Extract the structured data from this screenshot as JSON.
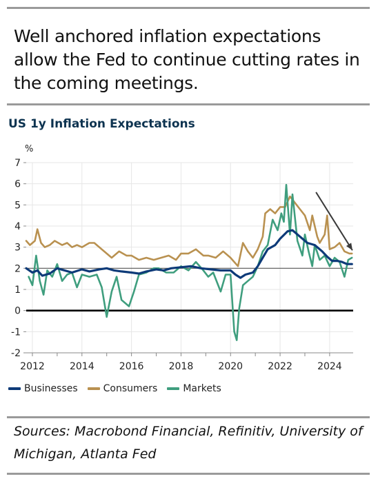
{
  "headline": "Well anchored inflation expectations allow the Fed to continue cutting rates in the coming meetings.",
  "sources": "Sources: Macrobond Financial, Refinitiv, University of Michigan, Atlanta Fed",
  "colors": {
    "businesses": "#0d3a78",
    "consumers": "#b99150",
    "markets": "#3f9e7e",
    "zero_line": "#000000",
    "target_line": "#555555",
    "grid": "#e6e6e6",
    "arrow": "#3a3a3a",
    "title": "#0d3350"
  },
  "chart_data": {
    "type": "line",
    "title": "US 1y Inflation Expectations",
    "ylabel": "%",
    "xlabel": "",
    "ylim": [
      -2,
      7
    ],
    "xlim": [
      2011.75,
      2024.95
    ],
    "yticks": [
      "-2",
      "-1",
      "0",
      "1",
      "2",
      "3",
      "4",
      "5",
      "6",
      "7"
    ],
    "xticks": [
      "2012",
      "2014",
      "2016",
      "2018",
      "2020",
      "2022",
      "2024"
    ],
    "grid": true,
    "legend_position": "bottom",
    "reference_lines": [
      0,
      2
    ],
    "annotation": "downward arrow from early 2023 toward late 2024 near 2.6%",
    "series": [
      {
        "name": "Businesses",
        "points": [
          [
            2011.75,
            2.0
          ],
          [
            2012.0,
            1.8
          ],
          [
            2012.2,
            1.9
          ],
          [
            2012.4,
            1.65
          ],
          [
            2012.7,
            1.75
          ],
          [
            2013.0,
            2.0
          ],
          [
            2013.3,
            1.9
          ],
          [
            2013.6,
            1.8
          ],
          [
            2014.0,
            1.95
          ],
          [
            2014.3,
            1.85
          ],
          [
            2014.7,
            1.95
          ],
          [
            2015.0,
            2.0
          ],
          [
            2015.3,
            1.9
          ],
          [
            2015.6,
            1.85
          ],
          [
            2016.0,
            1.8
          ],
          [
            2016.3,
            1.75
          ],
          [
            2016.6,
            1.85
          ],
          [
            2017.0,
            1.95
          ],
          [
            2017.3,
            1.9
          ],
          [
            2017.6,
            2.0
          ],
          [
            2018.0,
            2.05
          ],
          [
            2018.4,
            2.1
          ],
          [
            2018.8,
            2.0
          ],
          [
            2019.2,
            1.95
          ],
          [
            2019.6,
            1.9
          ],
          [
            2020.0,
            1.9
          ],
          [
            2020.2,
            1.7
          ],
          [
            2020.4,
            1.55
          ],
          [
            2020.6,
            1.7
          ],
          [
            2020.9,
            1.8
          ],
          [
            2021.1,
            2.1
          ],
          [
            2021.3,
            2.5
          ],
          [
            2021.5,
            2.9
          ],
          [
            2021.8,
            3.1
          ],
          [
            2022.0,
            3.4
          ],
          [
            2022.3,
            3.75
          ],
          [
            2022.5,
            3.8
          ],
          [
            2022.8,
            3.5
          ],
          [
            2023.1,
            3.2
          ],
          [
            2023.4,
            3.1
          ],
          [
            2023.7,
            2.8
          ],
          [
            2023.9,
            2.55
          ],
          [
            2024.1,
            2.35
          ],
          [
            2024.3,
            2.35
          ],
          [
            2024.5,
            2.3
          ],
          [
            2024.7,
            2.2
          ],
          [
            2024.9,
            2.2
          ]
        ]
      },
      {
        "name": "Consumers",
        "points": [
          [
            2011.75,
            3.3
          ],
          [
            2011.9,
            3.1
          ],
          [
            2012.1,
            3.3
          ],
          [
            2012.2,
            3.85
          ],
          [
            2012.35,
            3.2
          ],
          [
            2012.5,
            3.0
          ],
          [
            2012.7,
            3.1
          ],
          [
            2012.9,
            3.3
          ],
          [
            2013.2,
            3.1
          ],
          [
            2013.4,
            3.2
          ],
          [
            2013.6,
            3.0
          ],
          [
            2013.8,
            3.1
          ],
          [
            2014.0,
            3.0
          ],
          [
            2014.3,
            3.2
          ],
          [
            2014.5,
            3.2
          ],
          [
            2014.8,
            2.9
          ],
          [
            2015.0,
            2.7
          ],
          [
            2015.2,
            2.5
          ],
          [
            2015.5,
            2.8
          ],
          [
            2015.8,
            2.6
          ],
          [
            2016.0,
            2.6
          ],
          [
            2016.3,
            2.4
          ],
          [
            2016.6,
            2.5
          ],
          [
            2016.9,
            2.4
          ],
          [
            2017.2,
            2.5
          ],
          [
            2017.5,
            2.6
          ],
          [
            2017.8,
            2.4
          ],
          [
            2018.0,
            2.7
          ],
          [
            2018.3,
            2.7
          ],
          [
            2018.6,
            2.9
          ],
          [
            2018.9,
            2.6
          ],
          [
            2019.1,
            2.6
          ],
          [
            2019.4,
            2.5
          ],
          [
            2019.7,
            2.8
          ],
          [
            2020.0,
            2.5
          ],
          [
            2020.3,
            2.1
          ],
          [
            2020.5,
            3.2
          ],
          [
            2020.7,
            2.8
          ],
          [
            2020.9,
            2.5
          ],
          [
            2021.1,
            2.9
          ],
          [
            2021.3,
            3.5
          ],
          [
            2021.4,
            4.6
          ],
          [
            2021.6,
            4.8
          ],
          [
            2021.8,
            4.6
          ],
          [
            2022.0,
            4.9
          ],
          [
            2022.2,
            4.9
          ],
          [
            2022.4,
            5.4
          ],
          [
            2022.6,
            5.1
          ],
          [
            2022.8,
            4.8
          ],
          [
            2023.0,
            4.5
          ],
          [
            2023.2,
            3.8
          ],
          [
            2023.3,
            4.5
          ],
          [
            2023.5,
            3.5
          ],
          [
            2023.6,
            3.2
          ],
          [
            2023.8,
            3.6
          ],
          [
            2023.9,
            4.5
          ],
          [
            2024.0,
            2.9
          ],
          [
            2024.2,
            3.0
          ],
          [
            2024.4,
            3.2
          ],
          [
            2024.6,
            2.8
          ],
          [
            2024.8,
            2.7
          ],
          [
            2024.9,
            2.7
          ]
        ]
      },
      {
        "name": "Markets",
        "points": [
          [
            2011.85,
            1.6
          ],
          [
            2012.0,
            1.2
          ],
          [
            2012.15,
            2.6
          ],
          [
            2012.3,
            1.4
          ],
          [
            2012.45,
            0.75
          ],
          [
            2012.6,
            1.9
          ],
          [
            2012.8,
            1.6
          ],
          [
            2013.0,
            2.2
          ],
          [
            2013.2,
            1.4
          ],
          [
            2013.4,
            1.7
          ],
          [
            2013.6,
            1.8
          ],
          [
            2013.8,
            1.1
          ],
          [
            2014.0,
            1.7
          ],
          [
            2014.3,
            1.6
          ],
          [
            2014.6,
            1.7
          ],
          [
            2014.8,
            1.1
          ],
          [
            2015.0,
            -0.3
          ],
          [
            2015.2,
            0.9
          ],
          [
            2015.4,
            1.6
          ],
          [
            2015.6,
            0.5
          ],
          [
            2015.9,
            0.2
          ],
          [
            2016.1,
            0.9
          ],
          [
            2016.3,
            1.7
          ],
          [
            2016.6,
            1.8
          ],
          [
            2016.9,
            2.0
          ],
          [
            2017.1,
            2.0
          ],
          [
            2017.4,
            1.8
          ],
          [
            2017.7,
            1.8
          ],
          [
            2018.0,
            2.1
          ],
          [
            2018.3,
            1.9
          ],
          [
            2018.6,
            2.3
          ],
          [
            2018.9,
            1.9
          ],
          [
            2019.1,
            1.6
          ],
          [
            2019.3,
            1.8
          ],
          [
            2019.6,
            0.9
          ],
          [
            2019.8,
            1.7
          ],
          [
            2020.0,
            1.7
          ],
          [
            2020.15,
            -1.0
          ],
          [
            2020.25,
            -1.4
          ],
          [
            2020.35,
            0.1
          ],
          [
            2020.5,
            1.2
          ],
          [
            2020.7,
            1.4
          ],
          [
            2020.9,
            1.6
          ],
          [
            2021.1,
            2.1
          ],
          [
            2021.3,
            2.8
          ],
          [
            2021.5,
            3.1
          ],
          [
            2021.7,
            4.3
          ],
          [
            2021.9,
            3.8
          ],
          [
            2022.05,
            4.6
          ],
          [
            2022.15,
            4.2
          ],
          [
            2022.25,
            5.95
          ],
          [
            2022.4,
            3.6
          ],
          [
            2022.5,
            5.5
          ],
          [
            2022.7,
            3.3
          ],
          [
            2022.9,
            2.6
          ],
          [
            2023.0,
            3.6
          ],
          [
            2023.15,
            2.8
          ],
          [
            2023.3,
            2.1
          ],
          [
            2023.4,
            3.1
          ],
          [
            2023.6,
            2.4
          ],
          [
            2023.8,
            2.6
          ],
          [
            2024.0,
            2.1
          ],
          [
            2024.2,
            2.5
          ],
          [
            2024.4,
            2.3
          ],
          [
            2024.6,
            1.6
          ],
          [
            2024.75,
            2.4
          ],
          [
            2024.9,
            2.5
          ]
        ]
      }
    ]
  }
}
